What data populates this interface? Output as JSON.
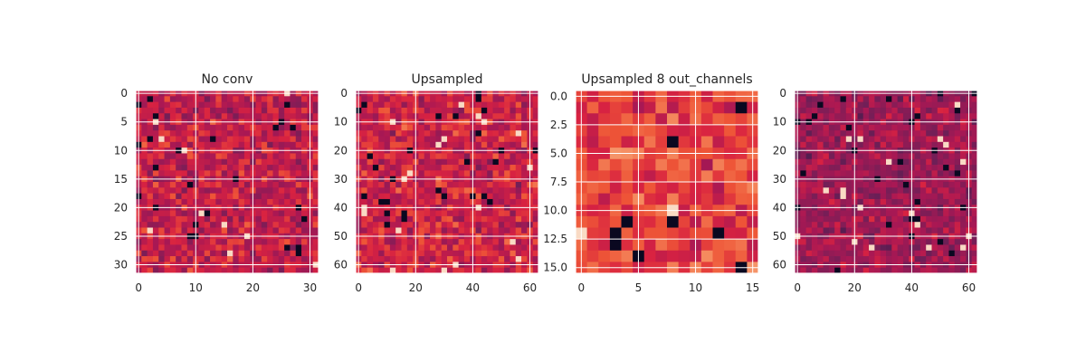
{
  "chart_data": [
    {
      "type": "heatmap",
      "title": "No conv",
      "rows": 32,
      "cols": 32,
      "xlim": [
        -0.5,
        31.5
      ],
      "ylim": [
        31.5,
        -0.5
      ],
      "xticks": [
        0,
        10,
        20,
        30
      ],
      "yticks": [
        0,
        5,
        10,
        15,
        20,
        25,
        30
      ],
      "grid": true,
      "colormap": "rocket",
      "seed": 11,
      "level_mean": 0.52,
      "level_spread": 0.15
    },
    {
      "type": "heatmap",
      "title": "Upsampled",
      "rows": 32,
      "cols": 32,
      "xlim": [
        -1,
        63
      ],
      "ylim": [
        63,
        -1
      ],
      "xticks": [
        0,
        20,
        40,
        60
      ],
      "yticks": [
        0,
        10,
        20,
        30,
        40,
        50,
        60
      ],
      "grid": true,
      "colormap": "rocket",
      "seed": 23,
      "level_mean": 0.55,
      "level_spread": 0.15
    },
    {
      "type": "heatmap",
      "title": "Upsampled 8 out_channels",
      "rows": 16,
      "cols": 16,
      "xlim": [
        -0.5,
        15.5
      ],
      "ylim": [
        15.5,
        -0.5
      ],
      "xticks": [
        0,
        5,
        10,
        15
      ],
      "yticks": [
        0.0,
        2.5,
        5.0,
        7.5,
        10.0,
        12.5,
        15.0
      ],
      "ytick_labels": [
        "0.0",
        "2.5",
        "5.0",
        "7.5",
        "10.0",
        "12.5",
        "15.0"
      ],
      "grid": true,
      "colormap": "rocket",
      "seed": 37,
      "level_mean": 0.65,
      "level_spread": 0.15
    },
    {
      "type": "heatmap",
      "title": "",
      "rows": 32,
      "cols": 32,
      "xlim": [
        -1,
        63
      ],
      "ylim": [
        63,
        -1
      ],
      "xticks": [
        0,
        20,
        40,
        60
      ],
      "yticks": [
        0,
        10,
        20,
        30,
        40,
        50,
        60
      ],
      "grid": true,
      "colormap": "rocket",
      "seed": 53,
      "level_mean": 0.42,
      "level_spread": 0.12
    }
  ],
  "colors": {
    "grid": "#ffffff",
    "axis_text": "#262626",
    "background": "#ffffff"
  }
}
